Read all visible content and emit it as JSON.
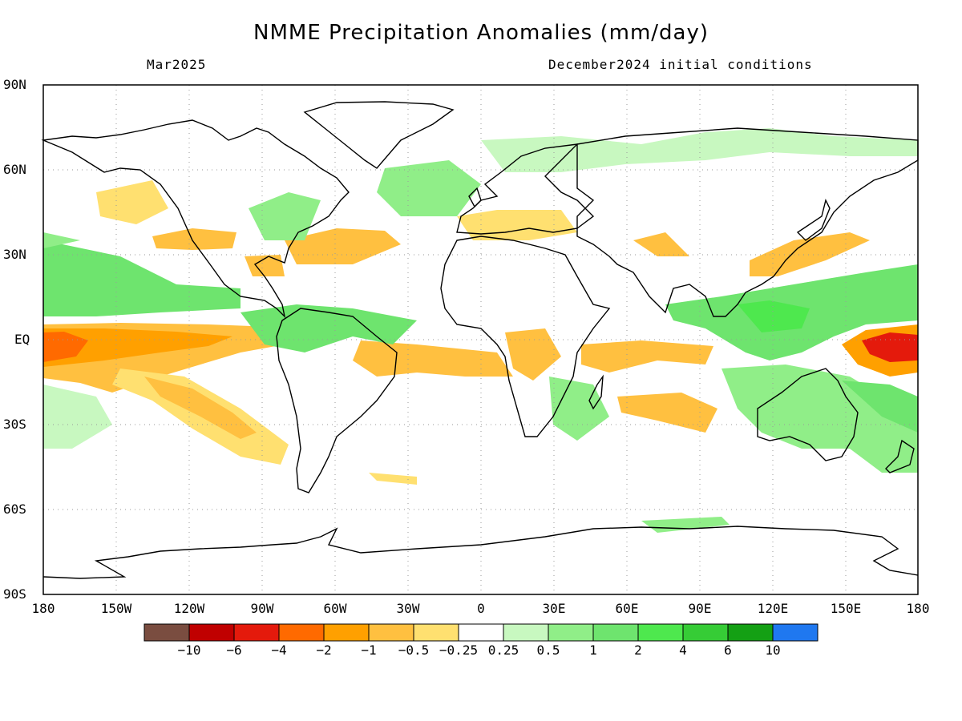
{
  "title": "NMME Precipitation Anomalies (mm/day)",
  "valid_month": "Mar2025",
  "initial_conditions": "December2024 initial conditions",
  "lat_labels": [
    "90N",
    "60N",
    "30N",
    "EQ",
    "30S",
    "60S",
    "90S"
  ],
  "lon_labels": [
    "180",
    "150W",
    "120W",
    "90W",
    "60W",
    "30W",
    "0",
    "30E",
    "60E",
    "90E",
    "120E",
    "150E",
    "180"
  ],
  "colorbar": {
    "colors": [
      "#7a4d40",
      "#c00000",
      "#e41a0c",
      "#ff6a00",
      "#ffa000",
      "#ffc040",
      "#ffe070",
      "#ffffff",
      "#c8f8c0",
      "#90ee88",
      "#6ee46e",
      "#4ee84e",
      "#36cc36",
      "#14a014",
      "#1f78f0"
    ],
    "labels": [
      "−10",
      "−6",
      "−4",
      "−2",
      "−1",
      "−0.5",
      "−0.25",
      "0.25",
      "0.5",
      "1",
      "2",
      "4",
      "6",
      "10"
    ]
  }
}
